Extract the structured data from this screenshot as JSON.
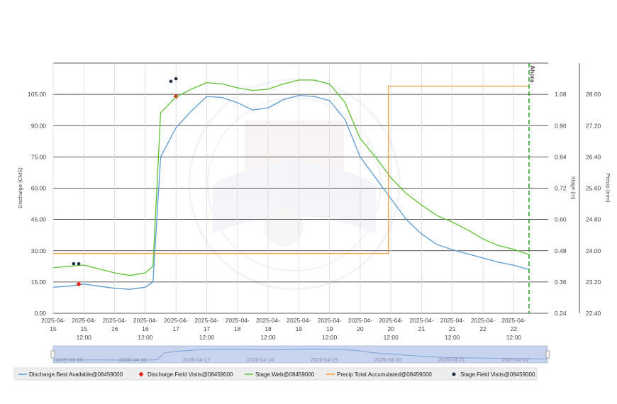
{
  "chart_data": {
    "type": "line",
    "xlabel": "",
    "x_ticks": [
      "2025-04-15",
      "2025-04-15 12:00",
      "2025-04-16",
      "2025-04-16 12:00",
      "2025-04-17",
      "2025-04-17 12:00",
      "2025-04-18",
      "2025-04-18 12:00",
      "2025-04-19",
      "2025-04-19 12:00",
      "2025-04-20",
      "2025-04-20 12:00",
      "2025-04-21",
      "2025-04-21 12:00",
      "2025-04-22",
      "2025-04-22 12:00"
    ],
    "x_tick_labels": [
      [
        "2025-04-",
        "15",
        ""
      ],
      [
        "2025-04-",
        "15",
        "12:00"
      ],
      [
        "2025-04-",
        "16",
        ""
      ],
      [
        "2025-04-",
        "16",
        "12:00"
      ],
      [
        "2025-04-",
        "17",
        ""
      ],
      [
        "2025-04-",
        "17",
        "12:00"
      ],
      [
        "2025-04-",
        "18",
        ""
      ],
      [
        "2025-04-",
        "18",
        "12:00"
      ],
      [
        "2025-04-",
        "19",
        ""
      ],
      [
        "2025-04-",
        "19",
        "12:00"
      ],
      [
        "2025-04-",
        "20",
        ""
      ],
      [
        "2025-04-",
        "20",
        "12:00"
      ],
      [
        "2025-04-",
        "21",
        ""
      ],
      [
        "2025-04-",
        "21",
        "12:00"
      ],
      [
        "2025-04-",
        "22",
        ""
      ],
      [
        "2025-04-",
        "22",
        "12:00"
      ]
    ],
    "xlim": [
      "2025-04-15 00:00",
      "2025-04-22 18:00"
    ],
    "y_left": {
      "label": "Discharge (CMS)",
      "lim": [
        0,
        120
      ],
      "ticks": [
        "0.00",
        "15.00",
        "30.00",
        "45.00",
        "60.00",
        "75.00",
        "90.00",
        "105.00"
      ]
    },
    "y_stage": {
      "label": "Stage (m)",
      "lim": [
        0.24,
        1.2
      ],
      "ticks": [
        "0.24",
        "0.36",
        "0.48",
        "0.60",
        "0.72",
        "0.84",
        "0.96",
        "1.08"
      ]
    },
    "y_precip": {
      "label": "Precip (mm)",
      "lim": [
        22.4,
        28.8
      ],
      "ticks": [
        "22.40",
        "23.20",
        "24.00",
        "24.80",
        "25.60",
        "26.40",
        "27.20",
        "28.00"
      ]
    },
    "grid": true,
    "now_label": "Ahora",
    "now_x": "2025-04-22 18:00",
    "series": [
      {
        "name": "Discharge.Best Available@08459000",
        "axis": "y_left",
        "color": "#5b9bd5",
        "kind": "line",
        "x": [
          "2025-04-15 00:00",
          "2025-04-15 06:00",
          "2025-04-15 12:00",
          "2025-04-15 18:00",
          "2025-04-16 00:00",
          "2025-04-16 06:00",
          "2025-04-16 12:00",
          "2025-04-16 15:00",
          "2025-04-16 18:00",
          "2025-04-17 00:00",
          "2025-04-17 06:00",
          "2025-04-17 12:00",
          "2025-04-17 18:00",
          "2025-04-18 00:00",
          "2025-04-18 06:00",
          "2025-04-18 12:00",
          "2025-04-18 18:00",
          "2025-04-19 00:00",
          "2025-04-19 06:00",
          "2025-04-19 12:00",
          "2025-04-19 18:00",
          "2025-04-20 00:00",
          "2025-04-20 06:00",
          "2025-04-20 12:00",
          "2025-04-20 18:00",
          "2025-04-21 00:00",
          "2025-04-21 06:00",
          "2025-04-21 12:00",
          "2025-04-21 18:00",
          "2025-04-22 00:00",
          "2025-04-22 06:00",
          "2025-04-22 12:00",
          "2025-04-22 18:00"
        ],
        "y": [
          12.5,
          13.0,
          14.0,
          13.0,
          12.0,
          11.5,
          12.5,
          15.0,
          75.0,
          89.0,
          97.0,
          104.0,
          103.5,
          101.0,
          97.5,
          98.5,
          102.5,
          104.5,
          104.0,
          102.0,
          93.0,
          75.0,
          65.0,
          55.0,
          45.0,
          38.0,
          33.0,
          30.5,
          28.5,
          26.5,
          24.5,
          23.0,
          21.0
        ]
      },
      {
        "name": "Discharge.Field Visits@08459000",
        "axis": "y_left",
        "color": "#e8231c",
        "kind": "marker",
        "marker": "diamond",
        "x": [
          "2025-04-15 10:00",
          "2025-04-17 00:00"
        ],
        "y": [
          14.0,
          104.0
        ]
      },
      {
        "name": "Stage.Web@08459000",
        "axis": "y_stage",
        "color": "#5dc232",
        "kind": "line",
        "x": [
          "2025-04-15 00:00",
          "2025-04-15 06:00",
          "2025-04-15 12:00",
          "2025-04-15 18:00",
          "2025-04-16 00:00",
          "2025-04-16 06:00",
          "2025-04-16 12:00",
          "2025-04-16 15:00",
          "2025-04-16 18:00",
          "2025-04-17 00:00",
          "2025-04-17 06:00",
          "2025-04-17 12:00",
          "2025-04-17 18:00",
          "2025-04-18 00:00",
          "2025-04-18 06:00",
          "2025-04-18 12:00",
          "2025-04-18 18:00",
          "2025-04-19 00:00",
          "2025-04-19 06:00",
          "2025-04-19 12:00",
          "2025-04-19 18:00",
          "2025-04-20 00:00",
          "2025-04-20 06:00",
          "2025-04-20 12:00",
          "2025-04-20 18:00",
          "2025-04-21 00:00",
          "2025-04-21 06:00",
          "2025-04-21 12:00",
          "2025-04-21 18:00",
          "2025-04-22 00:00",
          "2025-04-22 06:00",
          "2025-04-22 12:00",
          "2025-04-22 18:00"
        ],
        "y": [
          0.415,
          0.42,
          0.425,
          0.41,
          0.395,
          0.385,
          0.395,
          0.42,
          1.01,
          1.07,
          1.1,
          1.125,
          1.12,
          1.105,
          1.095,
          1.1,
          1.12,
          1.135,
          1.135,
          1.12,
          1.05,
          0.91,
          0.84,
          0.76,
          0.7,
          0.655,
          0.615,
          0.59,
          0.56,
          0.525,
          0.5,
          0.485,
          0.465
        ]
      },
      {
        "name": "Precip Total.Accumulated@08459000",
        "axis": "y_precip",
        "color": "#f39a3c",
        "kind": "step",
        "x": [
          "2025-04-15 00:00",
          "2025-04-20 11:00",
          "2025-04-20 11:00",
          "2025-04-22 18:00"
        ],
        "y": [
          23.93,
          23.93,
          28.21,
          28.21
        ]
      },
      {
        "name": "Stage.Field Visits@08459000",
        "axis": "y_stage",
        "color": "#1e2a40",
        "kind": "marker",
        "marker": "circle",
        "x": [
          "2025-04-15 08:00",
          "2025-04-15 10:00",
          "2025-04-16 22:00",
          "2025-04-17 00:00"
        ],
        "y": [
          0.43,
          0.43,
          1.13,
          1.14
        ]
      }
    ],
    "navigator": {
      "labels": [
        "2025-04-15",
        "2025-04-16",
        "2025-04-17",
        "2025-04-18",
        "2025-04-19",
        "2025-04-20",
        "2025-04-21",
        "2025-04-22"
      ]
    },
    "legend_position": "bottom",
    "legend": [
      {
        "label": "Discharge.Best Available@08459000",
        "color": "#5b9bd5",
        "symbol": "line"
      },
      {
        "label": "Discharge.Field Visits@08459000",
        "color": "#e8231c",
        "symbol": "diamond"
      },
      {
        "label": "Stage.Web@08459000",
        "color": "#5dc232",
        "symbol": "line"
      },
      {
        "label": "Precip Total.Accumulated@08459000",
        "color": "#f39a3c",
        "symbol": "line"
      },
      {
        "label": "Stage.Field Visits@08459000",
        "color": "#1e2a40",
        "symbol": "circle"
      }
    ]
  }
}
